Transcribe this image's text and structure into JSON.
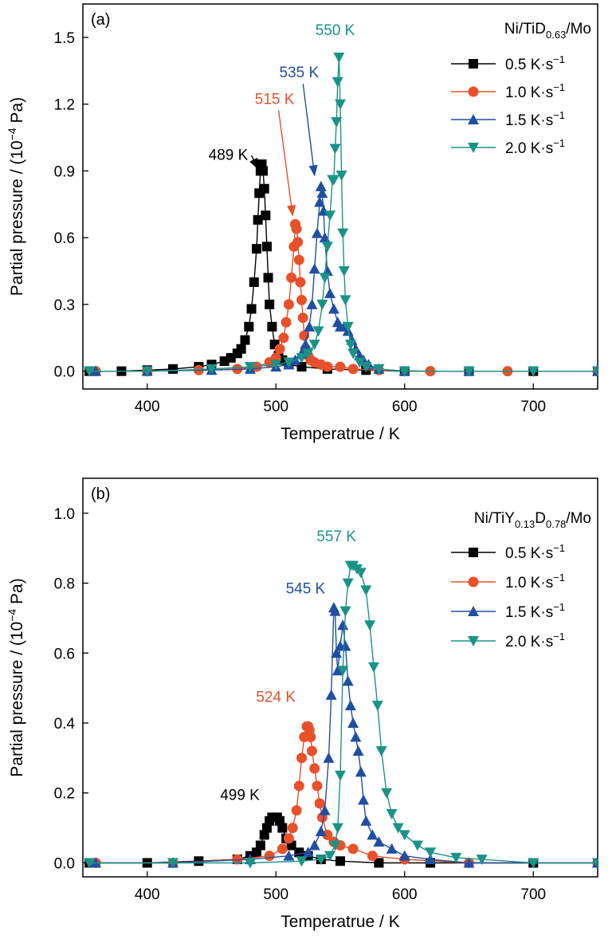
{
  "colors": {
    "black": "#000000",
    "orange": "#e8502a",
    "blue": "#1f4fa3",
    "teal": "#1a9387"
  },
  "chart_data": [
    {
      "type": "line",
      "panel_label": "(a)",
      "xlabel": "Temperatrue / K",
      "ylabel": "Partial pressure / (10",
      "ylabel_sup": "−4",
      "ylabel_tail": " Pa)",
      "xlim": [
        350,
        750
      ],
      "ylim": [
        -0.08,
        1.65
      ],
      "xticks": [
        400,
        500,
        600,
        700
      ],
      "yticks": [
        0.0,
        0.3,
        0.6,
        0.9,
        1.2,
        1.5
      ],
      "ytick_labels": [
        "0.0",
        "0.3",
        "0.6",
        "0.9",
        "1.2",
        "1.5"
      ],
      "legend_title": {
        "prefix": "Ni/TiD",
        "sub": "0.63",
        "suffix": "/Mo"
      },
      "legend_position": "top-right",
      "series": [
        {
          "name": "0.5 K·s",
          "sup": "−1",
          "color": "#000000",
          "marker": "square",
          "peak": 489,
          "x": [
            355,
            380,
            400,
            420,
            440,
            450,
            460,
            465,
            470,
            473,
            476,
            479,
            481,
            483,
            485,
            486,
            487,
            488,
            489,
            490,
            491,
            492,
            493,
            494,
            495,
            497,
            499,
            502,
            505,
            510,
            520,
            540,
            570,
            600,
            650,
            700,
            750
          ],
          "y": [
            0.0,
            0.0,
            0.005,
            0.01,
            0.02,
            0.03,
            0.045,
            0.06,
            0.08,
            0.1,
            0.14,
            0.2,
            0.28,
            0.4,
            0.55,
            0.68,
            0.8,
            0.9,
            0.93,
            0.9,
            0.82,
            0.7,
            0.56,
            0.42,
            0.3,
            0.2,
            0.12,
            0.07,
            0.05,
            0.03,
            0.02,
            0.01,
            0.005,
            0.0,
            0.0,
            0.0,
            0.0
          ]
        },
        {
          "name": "1.0 K·s",
          "sup": "−1",
          "color": "#e8502a",
          "marker": "circle",
          "peak": 515,
          "x": [
            360,
            400,
            440,
            470,
            485,
            495,
            500,
            503,
            506,
            508,
            510,
            512,
            514,
            515,
            516,
            517,
            518,
            519,
            520,
            521,
            522,
            523,
            525,
            527,
            530,
            535,
            540,
            550,
            560,
            580,
            620,
            680,
            750
          ],
          "y": [
            0.0,
            0.0,
            0.005,
            0.01,
            0.02,
            0.04,
            0.06,
            0.1,
            0.15,
            0.22,
            0.3,
            0.42,
            0.56,
            0.66,
            0.64,
            0.58,
            0.5,
            0.4,
            0.32,
            0.24,
            0.16,
            0.1,
            0.07,
            0.05,
            0.04,
            0.03,
            0.02,
            0.02,
            0.01,
            0.005,
            0.0,
            0.0,
            0.0
          ]
        },
        {
          "name": "1.5 K·s",
          "sup": "−1",
          "color": "#1f4fa3",
          "marker": "triangle-up",
          "peak": 535,
          "x": [
            360,
            400,
            450,
            480,
            500,
            510,
            515,
            520,
            523,
            526,
            528,
            530,
            532,
            534,
            535,
            536,
            537,
            538,
            540,
            542,
            545,
            548,
            550,
            553,
            556,
            559,
            562,
            565,
            568,
            572,
            580,
            600,
            650,
            750
          ],
          "y": [
            0.0,
            0.0,
            0.005,
            0.01,
            0.02,
            0.03,
            0.05,
            0.08,
            0.12,
            0.2,
            0.3,
            0.46,
            0.62,
            0.76,
            0.83,
            0.8,
            0.72,
            0.6,
            0.45,
            0.35,
            0.28,
            0.22,
            0.2,
            0.2,
            0.18,
            0.14,
            0.1,
            0.07,
            0.05,
            0.03,
            0.01,
            0.0,
            0.0,
            0.0
          ]
        },
        {
          "name": "2.0 K·s",
          "sup": "−1",
          "color": "#1a9387",
          "marker": "triangle-down",
          "peak": 550,
          "x": [
            355,
            400,
            450,
            480,
            500,
            510,
            520,
            525,
            530,
            533,
            536,
            538,
            540,
            542,
            544,
            545,
            546,
            547,
            548,
            549,
            550,
            551,
            552,
            553,
            554,
            556,
            558,
            560,
            565,
            570,
            580,
            600,
            650,
            700,
            750
          ],
          "y": [
            0.0,
            0.0,
            0.01,
            0.02,
            0.03,
            0.04,
            0.06,
            0.08,
            0.12,
            0.18,
            0.3,
            0.42,
            0.56,
            0.7,
            0.86,
            0.86,
            1.0,
            1.12,
            1.3,
            1.41,
            1.2,
            0.88,
            0.62,
            0.45,
            0.32,
            0.2,
            0.12,
            0.08,
            0.04,
            0.02,
            0.01,
            0.0,
            0.0,
            0.0,
            0.0
          ]
        }
      ],
      "annotations": [
        {
          "text": "489 K",
          "color": "#000000",
          "tx": 463,
          "ty": 0.95,
          "ax": 486,
          "ay": 0.91,
          "arrow": true
        },
        {
          "text": "515 K",
          "color": "#e8502a",
          "tx": 499,
          "ty": 1.2,
          "ax": 513,
          "ay": 0.7,
          "arrow": true
        },
        {
          "text": "535 K",
          "color": "#1f4fa3",
          "tx": 518,
          "ty": 1.32,
          "ax": 530,
          "ay": 0.88,
          "arrow": true
        },
        {
          "text": "550 K",
          "color": "#1a9387",
          "tx": 546,
          "ty": 1.51,
          "ax": 548,
          "ay": 1.42,
          "arrow": false
        }
      ]
    },
    {
      "type": "line",
      "panel_label": "(b)",
      "xlabel": "Temperatrue / K",
      "ylabel": "Partial pressure / (10",
      "ylabel_sup": "−4",
      "ylabel_tail": " Pa)",
      "xlim": [
        350,
        750
      ],
      "ylim": [
        -0.04,
        1.1
      ],
      "xticks": [
        400,
        500,
        600,
        700
      ],
      "yticks": [
        0.0,
        0.2,
        0.4,
        0.6,
        0.8,
        1.0
      ],
      "ytick_labels": [
        "0.0",
        "0.2",
        "0.4",
        "0.6",
        "0.8",
        "1.0"
      ],
      "legend_title": {
        "prefix": "Ni/TiY",
        "sub": "0.13",
        "mid": "D",
        "sub2": "0.78",
        "suffix": "/Mo"
      },
      "legend_position": "top-right",
      "series": [
        {
          "name": "0.5 K·s",
          "sup": "−1",
          "color": "#000000",
          "marker": "square",
          "peak": 499,
          "x": [
            355,
            400,
            440,
            470,
            480,
            485,
            488,
            491,
            493,
            495,
            497,
            499,
            501,
            503,
            505,
            508,
            512,
            518,
            525,
            535,
            550,
            580,
            620,
            700,
            750
          ],
          "y": [
            0.0,
            0.0,
            0.005,
            0.01,
            0.02,
            0.03,
            0.05,
            0.08,
            0.1,
            0.12,
            0.13,
            0.13,
            0.13,
            0.12,
            0.1,
            0.07,
            0.05,
            0.03,
            0.02,
            0.01,
            0.005,
            0.0,
            0.0,
            0.0,
            0.0
          ]
        },
        {
          "name": "1.0 K·s",
          "sup": "−1",
          "color": "#e8502a",
          "marker": "circle",
          "peak": 524,
          "x": [
            360,
            420,
            470,
            495,
            505,
            510,
            513,
            516,
            518,
            520,
            522,
            524,
            525,
            526,
            527,
            528,
            530,
            532,
            534,
            536,
            540,
            545,
            550,
            560,
            575,
            600,
            650,
            750
          ],
          "y": [
            0.0,
            0.0,
            0.01,
            0.02,
            0.04,
            0.07,
            0.1,
            0.15,
            0.22,
            0.3,
            0.36,
            0.39,
            0.39,
            0.38,
            0.36,
            0.32,
            0.27,
            0.22,
            0.17,
            0.13,
            0.08,
            0.06,
            0.05,
            0.04,
            0.02,
            0.01,
            0.0,
            0.0
          ]
        },
        {
          "name": "1.5 K·s",
          "sup": "−1",
          "color": "#1f4fa3",
          "marker": "triangle-up",
          "peak": 545,
          "x": [
            360,
            420,
            480,
            510,
            525,
            530,
            535,
            538,
            541,
            543,
            545,
            546,
            547,
            548,
            550,
            552,
            554,
            556,
            558,
            560,
            562,
            564,
            566,
            568,
            570,
            575,
            580,
            590,
            600,
            620,
            650,
            750
          ],
          "y": [
            0.0,
            0.0,
            0.01,
            0.02,
            0.03,
            0.05,
            0.09,
            0.15,
            0.3,
            0.48,
            0.73,
            0.72,
            0.6,
            0.55,
            0.62,
            0.68,
            0.62,
            0.52,
            0.45,
            0.4,
            0.36,
            0.32,
            0.26,
            0.18,
            0.12,
            0.08,
            0.06,
            0.04,
            0.02,
            0.01,
            0.0,
            0.0
          ]
        },
        {
          "name": "2.0 K·s",
          "sup": "−1",
          "color": "#1a9387",
          "marker": "triangle-down",
          "peak": 557,
          "x": [
            355,
            420,
            480,
            520,
            535,
            542,
            546,
            548,
            550,
            552,
            554,
            556,
            558,
            560,
            563,
            566,
            570,
            573,
            576,
            579,
            582,
            586,
            590,
            595,
            600,
            610,
            620,
            640,
            660,
            700,
            750
          ],
          "y": [
            0.0,
            0.0,
            0.0,
            0.005,
            0.01,
            0.02,
            0.05,
            0.1,
            0.25,
            0.55,
            0.72,
            0.8,
            0.85,
            0.85,
            0.84,
            0.83,
            0.78,
            0.68,
            0.56,
            0.45,
            0.32,
            0.2,
            0.14,
            0.1,
            0.08,
            0.05,
            0.03,
            0.015,
            0.01,
            0.0,
            0.0
          ]
        }
      ],
      "annotations": [
        {
          "text": "499 K",
          "color": "#000000",
          "tx": 472,
          "ty": 0.18,
          "arrow": false
        },
        {
          "text": "524 K",
          "color": "#e8502a",
          "tx": 500,
          "ty": 0.46,
          "arrow": false
        },
        {
          "text": "545 K",
          "color": "#1f4fa3",
          "tx": 523,
          "ty": 0.77,
          "arrow": false
        },
        {
          "text": "557 K",
          "color": "#1a9387",
          "tx": 547,
          "ty": 0.92,
          "arrow": false
        }
      ]
    }
  ]
}
